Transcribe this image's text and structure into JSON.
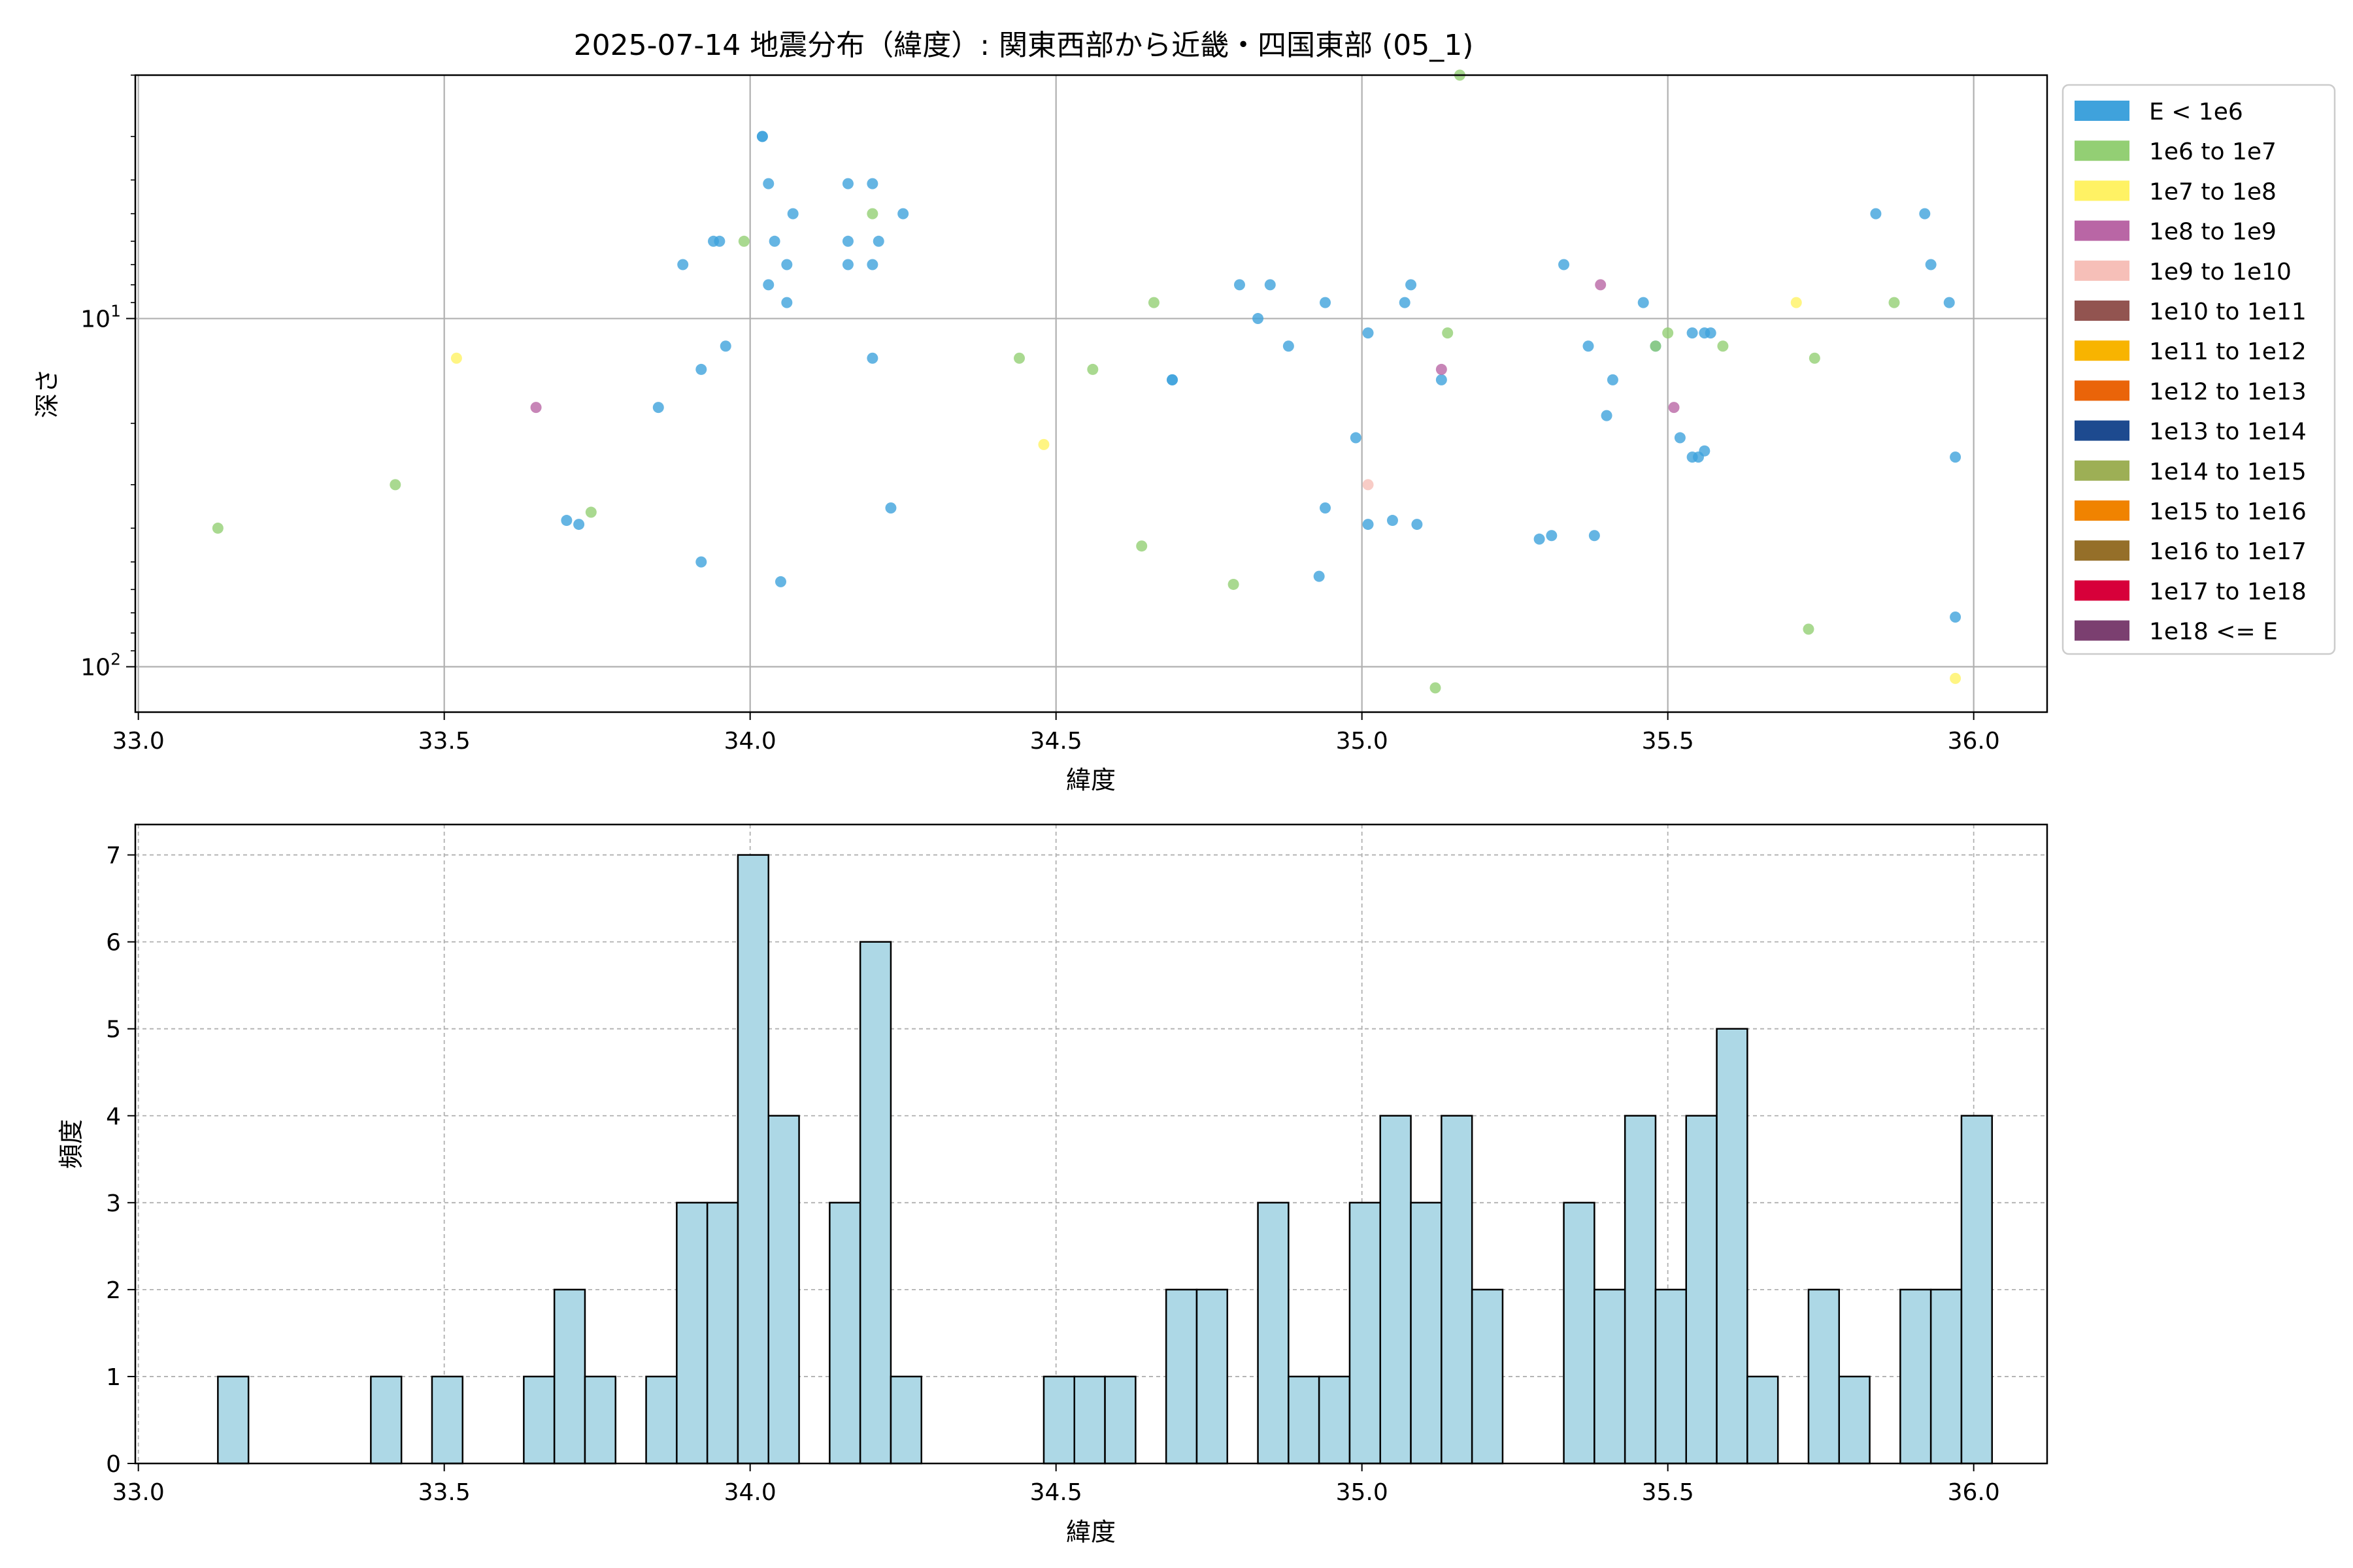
{
  "title": "2025-07-14 地震分布（緯度）: 関東西部から近畿・四国東部 (05_1)",
  "legend_entries": [
    {
      "label": "E < 1e6",
      "color": "#3fa2dc"
    },
    {
      "label": "1e6 to 1e7",
      "color": "#93cf74"
    },
    {
      "label": "1e7 to 1e8",
      "color": "#fff264"
    },
    {
      "label": "1e8 to 1e9",
      "color": "#b966a5"
    },
    {
      "label": "1e9 to 1e10",
      "color": "#f6bfb8"
    },
    {
      "label": "1e10 to 1e11",
      "color": "#925450"
    },
    {
      "label": "1e11 to 1e12",
      "color": "#f8b400"
    },
    {
      "label": "1e12 to 1e13",
      "color": "#ea6409"
    },
    {
      "label": "1e13 to 1e14",
      "color": "#1d4a8f"
    },
    {
      "label": "1e14 to 1e15",
      "color": "#9daf55"
    },
    {
      "label": "1e15 to 1e16",
      "color": "#f08300"
    },
    {
      "label": "1e16 to 1e17",
      "color": "#956f29"
    },
    {
      "label": "1e17 to 1e18",
      "color": "#d7003a"
    },
    {
      "label": "1e18 <= E",
      "color": "#7b3f70"
    }
  ],
  "chart_data": [
    {
      "type": "scatter",
      "title": "2025-07-14 地震分布（緯度）: 関東西部から近畿・四国東部 (05_1)",
      "xlabel": "緯度",
      "ylabel": "深さ",
      "xlim": [
        32.995,
        36.12
      ],
      "ylim": [
        135,
        2
      ],
      "y_scale": "log",
      "y_inverted": true,
      "grid": true,
      "legend_position": "outside-right",
      "x_ticks": [
        "33.0",
        "33.5",
        "34.0",
        "34.5",
        "35.0",
        "35.5",
        "36.0"
      ],
      "y_ticks": [
        {
          "value": 10,
          "label": "10^1"
        },
        {
          "value": 100,
          "label": "10^2"
        }
      ],
      "series": [
        {
          "legend_index": 0,
          "color": "#3fa2dc",
          "points": [
            [
              34.02,
              3.0
            ],
            [
              34.02,
              3.0
            ],
            [
              34.03,
              4.1
            ],
            [
              34.16,
              4.1
            ],
            [
              34.2,
              4.1
            ],
            [
              34.07,
              5.0
            ],
            [
              34.25,
              5.0
            ],
            [
              34.16,
              6.0
            ],
            [
              34.21,
              6.0
            ],
            [
              34.04,
              6.0
            ],
            [
              33.94,
              6.0
            ],
            [
              33.95,
              6.0
            ],
            [
              33.89,
              7.0
            ],
            [
              34.16,
              7.0
            ],
            [
              34.06,
              7.0
            ],
            [
              34.2,
              7.0
            ],
            [
              34.03,
              8.0
            ],
            [
              34.06,
              9.0
            ],
            [
              33.96,
              12.0
            ],
            [
              34.2,
              13.0
            ],
            [
              33.92,
              14.0
            ],
            [
              33.85,
              18.0
            ],
            [
              34.23,
              35.0
            ],
            [
              33.7,
              38.0
            ],
            [
              33.72,
              39.0
            ],
            [
              33.92,
              50.0
            ],
            [
              34.05,
              57.0
            ],
            [
              34.8,
              8.0
            ],
            [
              34.85,
              8.0
            ],
            [
              34.94,
              9.0
            ],
            [
              34.83,
              10.0
            ],
            [
              34.88,
              12.0
            ],
            [
              35.01,
              11.0
            ],
            [
              35.08,
              8.0
            ],
            [
              35.07,
              9.0
            ],
            [
              34.69,
              15.0
            ],
            [
              34.69,
              15.0
            ],
            [
              35.13,
              15.0
            ],
            [
              34.99,
              22.0
            ],
            [
              34.94,
              35.0
            ],
            [
              35.01,
              39.0
            ],
            [
              35.05,
              38.0
            ],
            [
              35.09,
              39.0
            ],
            [
              34.93,
              55.0
            ],
            [
              35.33,
              7.0
            ],
            [
              35.46,
              9.0
            ],
            [
              35.37,
              12.0
            ],
            [
              35.48,
              12.0
            ],
            [
              35.41,
              15.0
            ],
            [
              35.54,
              11.0
            ],
            [
              35.56,
              11.0
            ],
            [
              35.57,
              11.0
            ],
            [
              35.4,
              19.0
            ],
            [
              35.52,
              22.0
            ],
            [
              35.54,
              25.0
            ],
            [
              35.55,
              25.0
            ],
            [
              35.56,
              24.0
            ],
            [
              35.29,
              43.0
            ],
            [
              35.31,
              42.0
            ],
            [
              35.38,
              42.0
            ],
            [
              35.84,
              5.0
            ],
            [
              35.92,
              5.0
            ],
            [
              35.93,
              7.0
            ],
            [
              35.96,
              9.0
            ],
            [
              35.97,
              25.0
            ],
            [
              35.97,
              72.0
            ]
          ]
        },
        {
          "legend_index": 1,
          "color": "#93cf74",
          "points": [
            [
              35.16,
              2.0
            ],
            [
              34.2,
              5.0
            ],
            [
              33.99,
              6.0
            ],
            [
              34.66,
              9.0
            ],
            [
              35.14,
              11.0
            ],
            [
              34.44,
              13.0
            ],
            [
              34.56,
              14.0
            ],
            [
              33.42,
              30.0
            ],
            [
              33.74,
              36.0
            ],
            [
              33.13,
              40.0
            ],
            [
              34.64,
              45.0
            ],
            [
              34.79,
              58.0
            ],
            [
              35.12,
              115.0
            ],
            [
              35.5,
              11.0
            ],
            [
              35.48,
              12.0
            ],
            [
              35.59,
              12.0
            ],
            [
              35.87,
              9.0
            ],
            [
              35.74,
              13.0
            ],
            [
              35.73,
              78.0
            ]
          ]
        },
        {
          "legend_index": 2,
          "color": "#fff264",
          "points": [
            [
              33.52,
              13.0
            ],
            [
              34.48,
              23.0
            ],
            [
              35.71,
              9.0
            ],
            [
              35.97,
              108.0
            ]
          ]
        },
        {
          "legend_index": 3,
          "color": "#b966a5",
          "points": [
            [
              33.65,
              18.0
            ],
            [
              35.13,
              14.0
            ],
            [
              35.39,
              8.0
            ],
            [
              35.51,
              18.0
            ]
          ]
        },
        {
          "legend_index": 4,
          "color": "#f6bfb8",
          "points": [
            [
              35.01,
              30.0
            ]
          ]
        }
      ]
    },
    {
      "type": "bar",
      "subtype": "histogram",
      "xlabel": "緯度",
      "ylabel": "頻度",
      "xlim": [
        32.995,
        36.12
      ],
      "ylim": [
        0,
        7.35
      ],
      "grid": true,
      "grid_style": "dashed",
      "x_ticks": [
        "33.0",
        "33.5",
        "34.0",
        "34.5",
        "35.0",
        "35.5",
        "36.0"
      ],
      "y_ticks": [
        "0",
        "1",
        "2",
        "3",
        "4",
        "5",
        "6",
        "7"
      ],
      "bar_color": "#add8e6",
      "bin_start": 33.13,
      "bin_width": 0.05,
      "counts": [
        1,
        0,
        0,
        0,
        0,
        1,
        0,
        1,
        0,
        0,
        1,
        2,
        1,
        0,
        1,
        3,
        3,
        7,
        4,
        0,
        3,
        6,
        1,
        0,
        0,
        0,
        0,
        1,
        1,
        1,
        0,
        2,
        2,
        0,
        3,
        1,
        1,
        3,
        4,
        3,
        4,
        2,
        0,
        0,
        3,
        2,
        4,
        2,
        4,
        5,
        1,
        0,
        2,
        1,
        0,
        2,
        2,
        4
      ]
    }
  ]
}
